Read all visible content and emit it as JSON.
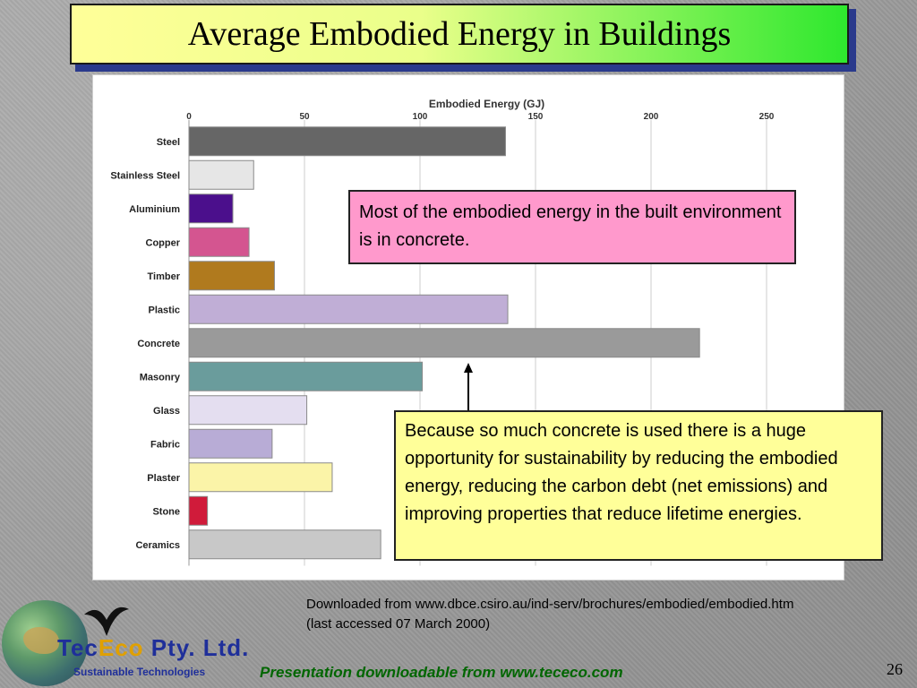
{
  "title": "Average Embodied Energy in Buildings",
  "chart_data": {
    "type": "bar",
    "orientation": "horizontal",
    "title": "Embodied Energy  (GJ)",
    "xlabel": "",
    "ylabel": "",
    "xlim": [
      0,
      250
    ],
    "x_ticks": [
      "0",
      "50",
      "100",
      "150",
      "200",
      "250"
    ],
    "grid": true,
    "categories": [
      "Steel",
      "Stainless Steel",
      "Aluminium",
      "Copper",
      "Timber",
      "Plastic",
      "Concrete",
      "Masonry",
      "Glass",
      "Fabric",
      "Plaster",
      "Stone",
      "Ceramics"
    ],
    "values": [
      137,
      28,
      19,
      26,
      37,
      138,
      221,
      101,
      51,
      36,
      62,
      8,
      83
    ],
    "colors": [
      "#666666",
      "#e6e6e6",
      "#4b0f8c",
      "#d45590",
      "#b07a1e",
      "#c0aed6",
      "#9a9a9a",
      "#6a9c9c",
      "#e4def0",
      "#b8acd6",
      "#fbf4a8",
      "#d01b3a",
      "#c8c8c8"
    ]
  },
  "callouts": {
    "pink": "Most of the embodied energy in the built environment is in concrete.",
    "yellow": "Because so much concrete is used there is a huge opportunity for sustainability by reducing the embodied energy, reducing the carbon debt (net emissions) and improving properties that reduce lifetime energies."
  },
  "source": "Downloaded from www.dbce.csiro.au/ind-serv/brochures/embodied/embodied.htm (last accessed 07 March 2000)",
  "footer": {
    "link": "Presentation downloadable from www.tececo.com",
    "page_number": "26"
  },
  "logo": {
    "name_part1": "Tec",
    "name_part2": "Eco",
    "name_part3": " Pty. Ltd.",
    "tagline": "Sustainable Technologies"
  }
}
